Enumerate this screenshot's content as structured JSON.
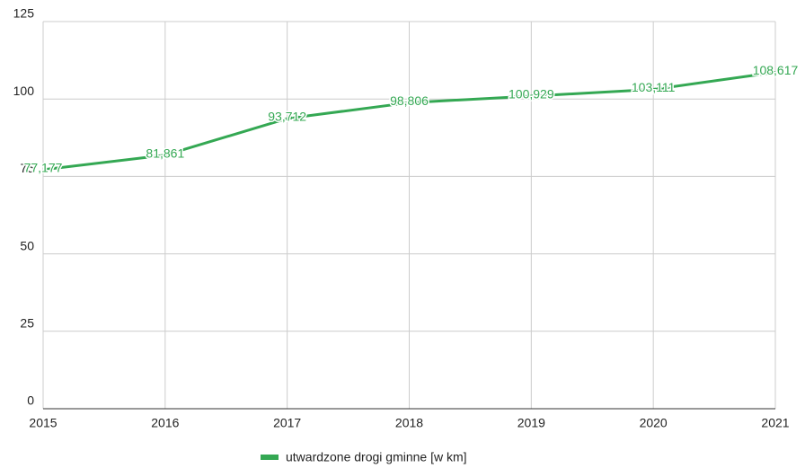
{
  "chart_data": {
    "type": "line",
    "x": [
      2015,
      2016,
      2017,
      2018,
      2019,
      2020,
      2021
    ],
    "series": [
      {
        "name": "utwardzone drogi gminne [w km]",
        "color": "#34a853",
        "values": [
          77.177,
          81.861,
          93.712,
          98.806,
          100.929,
          103.111,
          108.617
        ],
        "value_labels": [
          "77,177",
          "81,861",
          "93,712",
          "98,806",
          "100,929",
          "103,111",
          "108,617"
        ]
      }
    ],
    "xlim": [
      2015,
      2021
    ],
    "xticks": [
      2015,
      2016,
      2017,
      2018,
      2019,
      2020,
      2021
    ],
    "ylim": [
      0,
      125
    ],
    "yticks": [
      0,
      25,
      50,
      75,
      100,
      125
    ],
    "grid": true,
    "legend": "bottom"
  }
}
